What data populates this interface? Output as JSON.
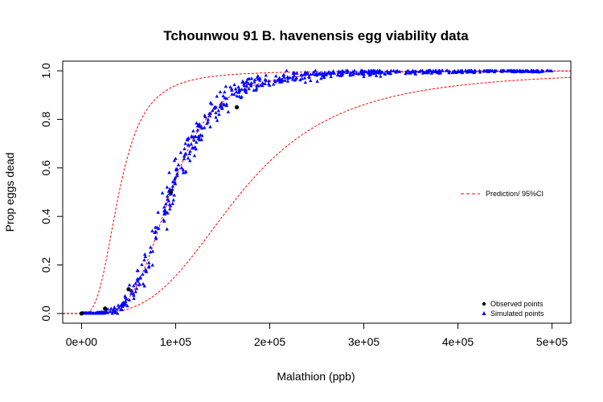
{
  "chart_data": {
    "type": "scatter",
    "title": "Tchounwou 91 B. havenensis egg viability data",
    "xlabel": "Malathion (ppb)",
    "ylabel": "Prop eggs dead",
    "xlim": [
      -20000,
      520000
    ],
    "ylim": [
      -0.04,
      1.04
    ],
    "x_ticks": [
      0,
      100000,
      200000,
      300000,
      400000,
      500000
    ],
    "x_tick_labels": [
      "0e+00",
      "1e+05",
      "2e+05",
      "3e+05",
      "4e+05",
      "5e+05"
    ],
    "y_ticks": [
      0.0,
      0.2,
      0.4,
      0.6,
      0.8,
      1.0
    ],
    "y_tick_labels": [
      "0.0",
      "0.2",
      "0.4",
      "0.6",
      "0.8",
      "1.0"
    ],
    "grid": false,
    "series": [
      {
        "name": "Observed points",
        "marker": "circle",
        "color": "#000000",
        "x": [
          0,
          25000,
          50000,
          95000,
          165000
        ],
        "y": [
          0.0,
          0.02,
          0.1,
          0.5,
          0.85
        ]
      },
      {
        "name": "Simulated points",
        "marker": "triangle",
        "color": "#0000ff",
        "generator": {
          "count": 700,
          "x_range": [
            0,
            500000
          ],
          "ld50": 95000,
          "slope": 4.2
        }
      }
    ],
    "lines": [
      {
        "name": "Prediction/ 95%CI",
        "style": "dashed",
        "color": "#ff0000",
        "curves": [
          {
            "role": "prediction",
            "ld50": 95000,
            "slope": 4.2
          },
          {
            "role": "upper-ci",
            "ld50": 40000,
            "slope": 3.0
          },
          {
            "role": "lower-ci",
            "ld50": 170000,
            "slope": 3.2
          }
        ]
      }
    ],
    "legends": [
      {
        "entries": [
          "Prediction/ 95%CI"
        ],
        "placement": "right"
      },
      {
        "entries": [
          "Observed points",
          "Simulated points"
        ],
        "placement": "bottom-right"
      }
    ]
  }
}
